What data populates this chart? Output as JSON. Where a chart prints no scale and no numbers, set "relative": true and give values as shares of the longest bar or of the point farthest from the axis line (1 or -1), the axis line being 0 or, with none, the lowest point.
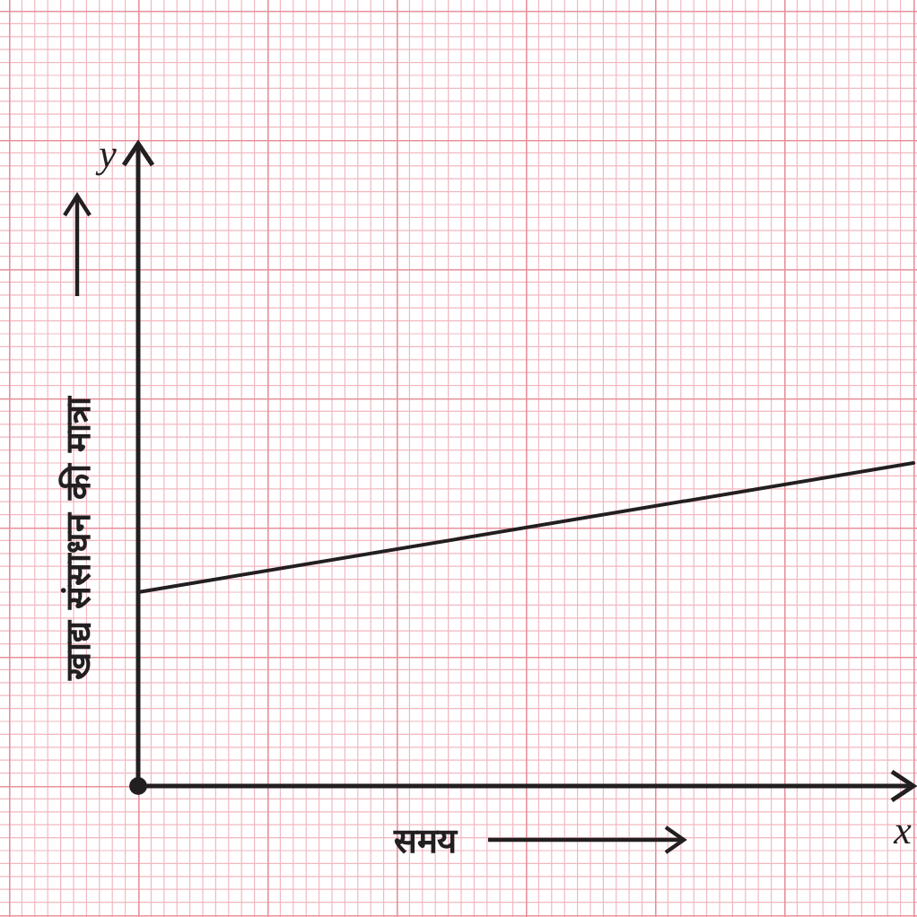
{
  "chart_data": {
    "type": "line",
    "relative": true,
    "xlabel": "समय",
    "ylabel": "खाद्य संसाधन की मात्रा",
    "categories": [
      null,
      null
    ],
    "series": [
      {
        "color": "#231f20",
        "values": [
          0.6,
          1
        ]
      }
    ],
    "annotations": [
      "y",
      "x"
    ],
    "marker": "none",
    "line_style": "solid"
  }
}
